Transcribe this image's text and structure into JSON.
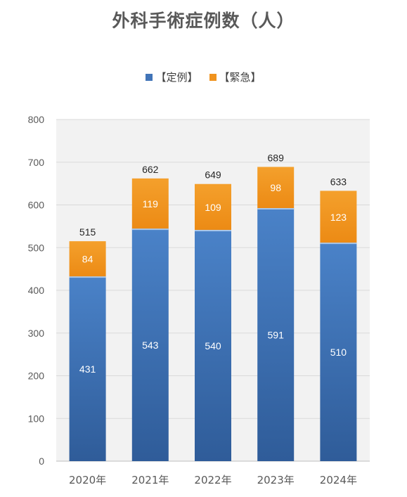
{
  "chart_data": {
    "type": "bar",
    "stacked": true,
    "title": "外科手術症例数（人）",
    "categories": [
      "2020年",
      "2021年",
      "2022年",
      "2023年",
      "2024年"
    ],
    "series": [
      {
        "name": "【定例】",
        "values": [
          431,
          543,
          540,
          591,
          510
        ],
        "color": "#4174B8"
      },
      {
        "name": "【緊急】",
        "values": [
          84,
          119,
          109,
          98,
          123
        ],
        "color": "#F0931E"
      }
    ],
    "totals": [
      515,
      662,
      649,
      689,
      633
    ],
    "ylim": [
      0,
      800
    ],
    "yticks": [
      0,
      100,
      200,
      300,
      400,
      500,
      600,
      700,
      800
    ],
    "grid": true,
    "legend_position": "top"
  }
}
